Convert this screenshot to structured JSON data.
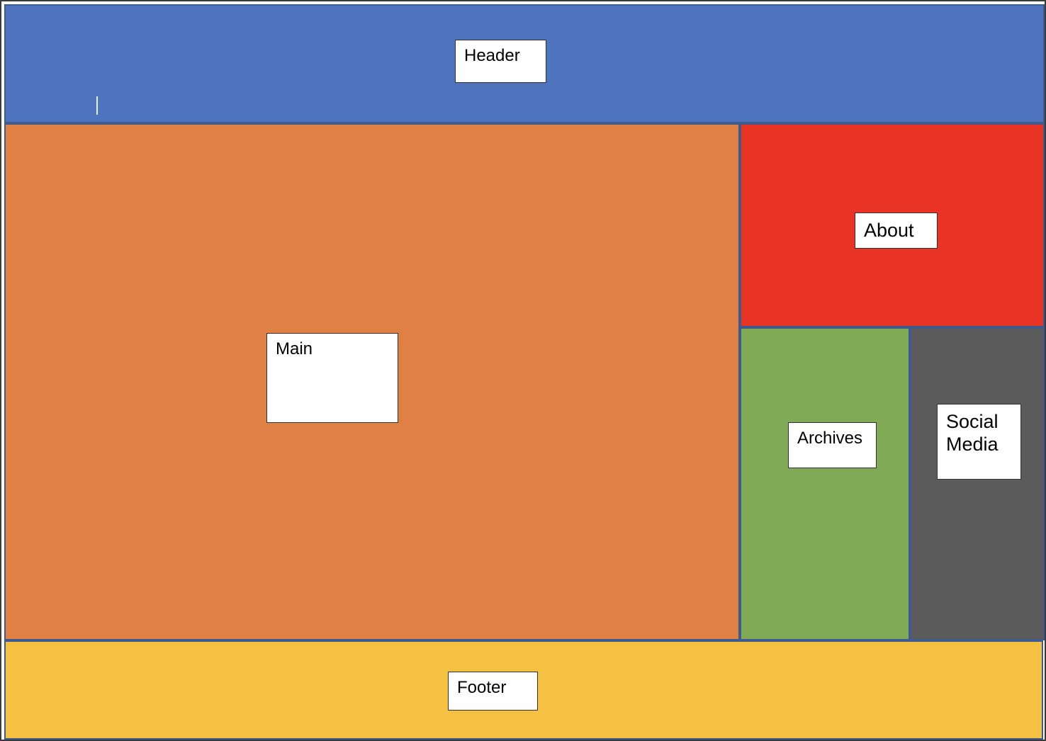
{
  "diagram": {
    "regions": {
      "header": {
        "label": "Header",
        "color": "#4d74bd"
      },
      "main": {
        "label": "Main",
        "color": "#df8044"
      },
      "about": {
        "label": "About",
        "color": "#e83325"
      },
      "archives": {
        "label": "Archives",
        "color": "#80aa56"
      },
      "social": {
        "label": "Social\nMedia",
        "color": "#5b5b5b"
      },
      "footer": {
        "label": "Footer",
        "color": "#f5c143"
      }
    }
  }
}
